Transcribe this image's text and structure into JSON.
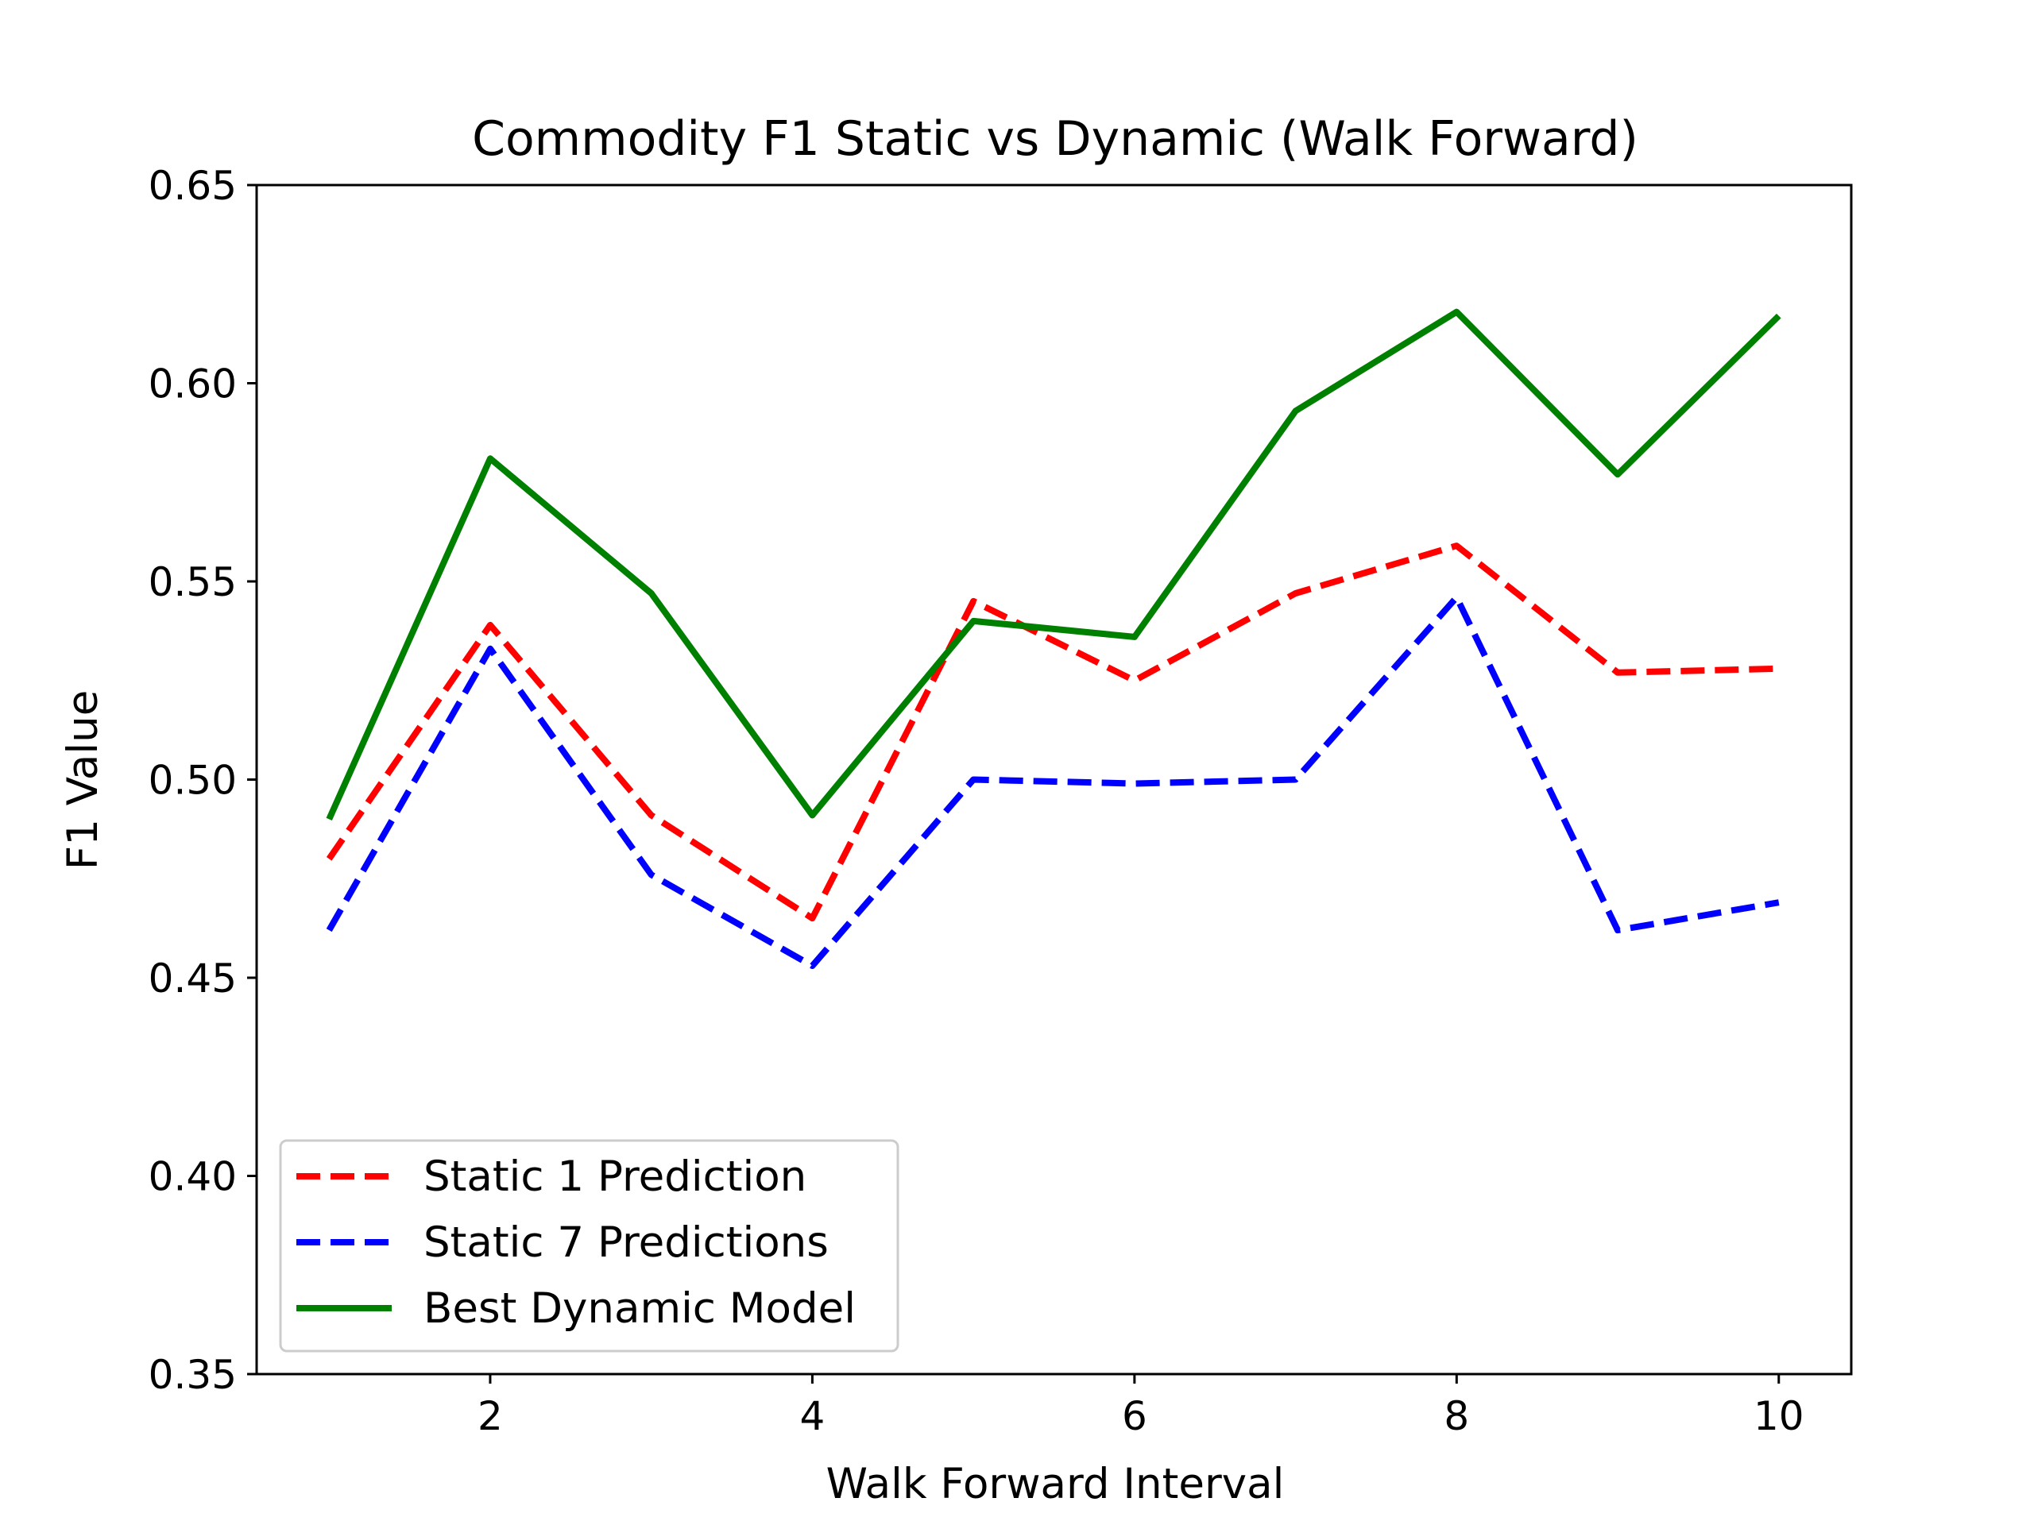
{
  "chart_data": {
    "type": "line",
    "title": "Commodity F1 Static vs Dynamic (Walk Forward)",
    "xlabel": "Walk Forward Interval",
    "ylabel": "F1 Value",
    "x": [
      1,
      2,
      3,
      4,
      5,
      6,
      7,
      8,
      9,
      10
    ],
    "xlim": [
      0.55,
      10.45
    ],
    "ylim": [
      0.35,
      0.65
    ],
    "xticks": [
      2,
      4,
      6,
      8,
      10
    ],
    "xtick_labels": [
      "2",
      "4",
      "6",
      "8",
      "10"
    ],
    "yticks": [
      0.35,
      0.4,
      0.45,
      0.5,
      0.55,
      0.6,
      0.65
    ],
    "ytick_labels": [
      "0.35",
      "0.40",
      "0.45",
      "0.50",
      "0.55",
      "0.60",
      "0.65"
    ],
    "grid": false,
    "legend_position": "lower-left",
    "series": [
      {
        "name": "Static 1 Prediction",
        "color": "#ff0000",
        "style": "dashed",
        "values": [
          0.48,
          0.539,
          0.491,
          0.465,
          0.545,
          0.525,
          0.547,
          0.559,
          0.527,
          0.528
        ]
      },
      {
        "name": "Static 7 Predictions",
        "color": "#0000ff",
        "style": "dashed",
        "values": [
          0.462,
          0.533,
          0.476,
          0.453,
          0.5,
          0.499,
          0.5,
          0.546,
          0.462,
          0.469
        ]
      },
      {
        "name": "Best Dynamic Model",
        "color": "#008000",
        "style": "solid",
        "values": [
          0.49,
          0.581,
          0.547,
          0.491,
          0.54,
          0.536,
          0.593,
          0.618,
          0.577,
          0.617
        ]
      }
    ]
  }
}
